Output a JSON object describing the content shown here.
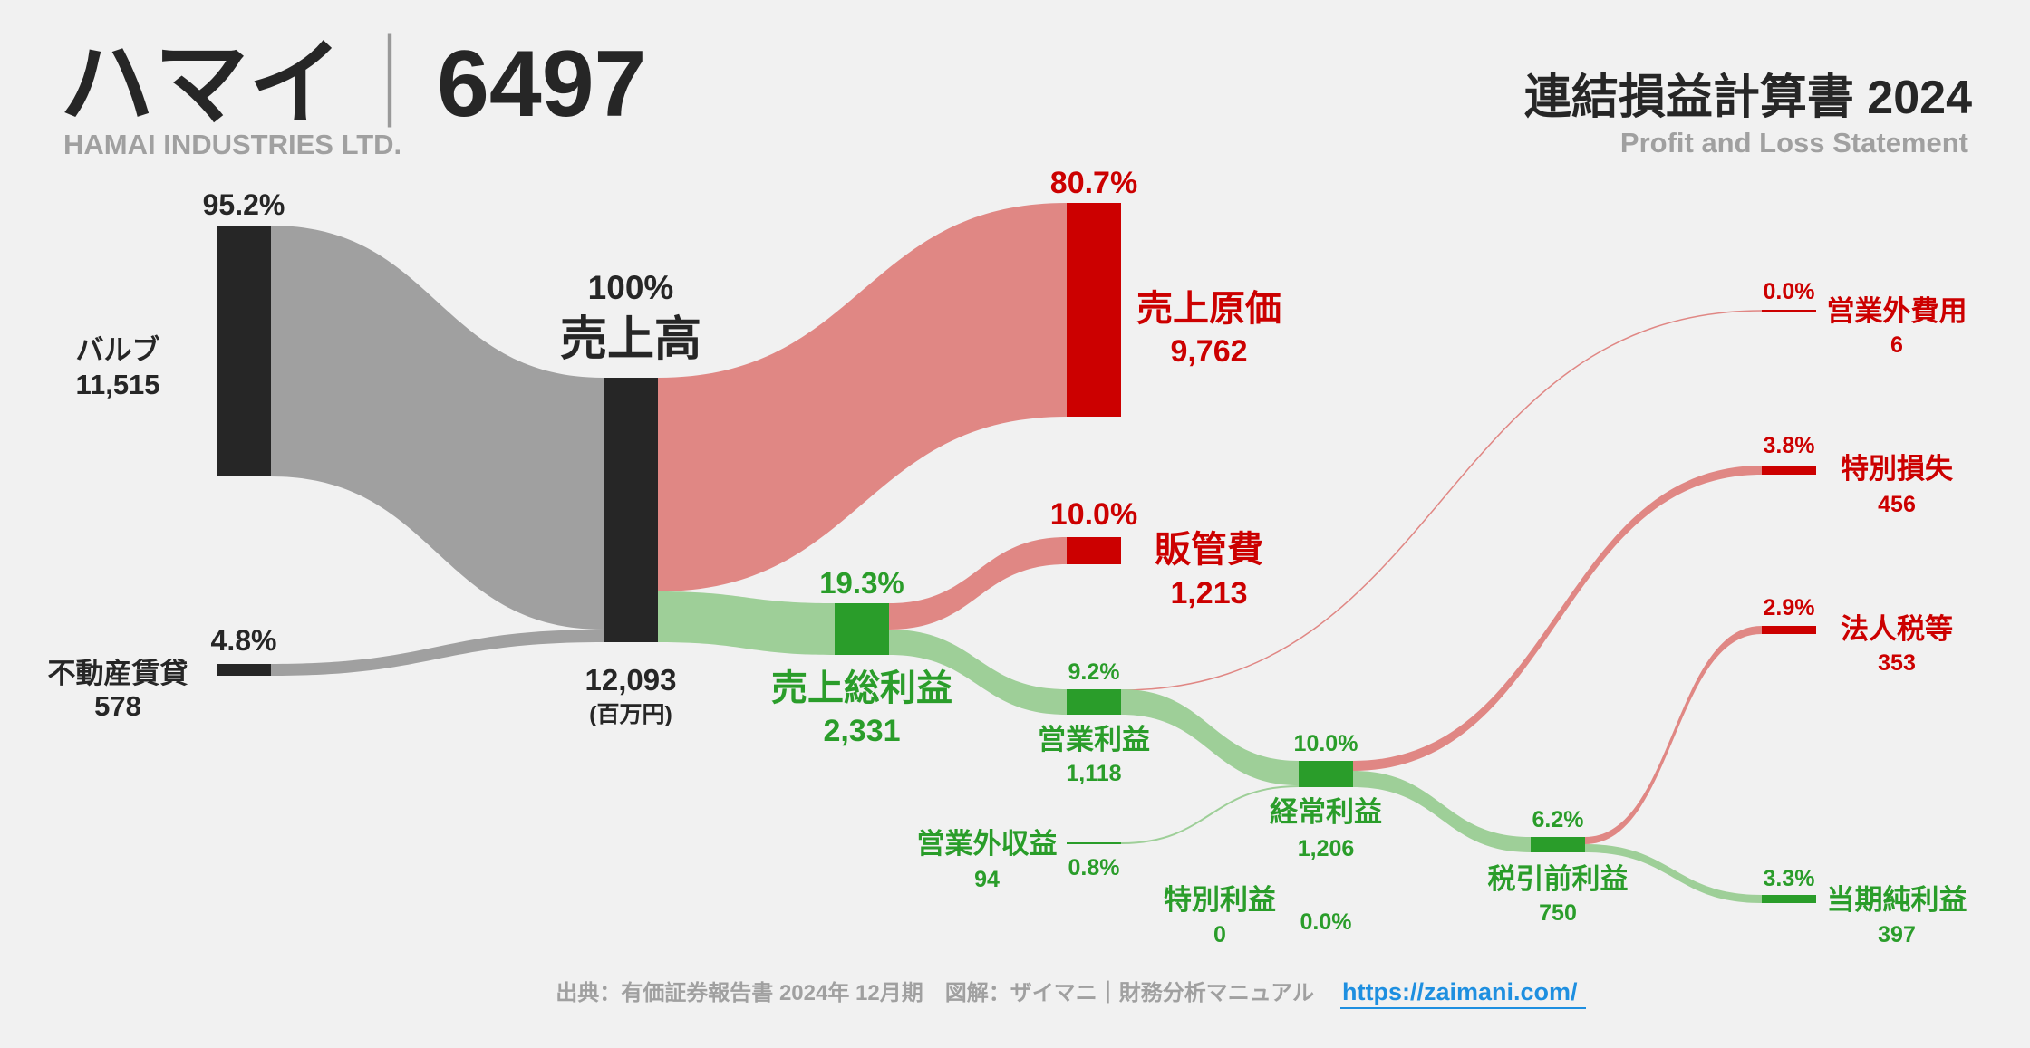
{
  "header": {
    "company": "ハマイ",
    "separator": "｜",
    "code": "6497",
    "company_en": "HAMAI INDUSTRIES LTD.",
    "statement_title": "連結損益計算書 2024",
    "statement_en": "Profit and Loss Statement"
  },
  "colors": {
    "dark": "#262626",
    "revenue_flow": "#a0a0a0",
    "cost": "#cc0000",
    "cost_flow": "#e08784",
    "profit": "#2a9d2a",
    "profit_flow": "#9ecf98"
  },
  "nodes": {
    "valve": {
      "pct": "95.2%",
      "label": "バルブ",
      "value": "11,515"
    },
    "rent": {
      "pct": "4.8%",
      "label": "不動産賃貸",
      "value": "578"
    },
    "sales": {
      "pct": "100%",
      "label": "売上高",
      "value": "12,093",
      "unit": "(百万円)"
    },
    "cogs": {
      "pct": "80.7%",
      "label": "売上原価",
      "value": "9,762"
    },
    "sga": {
      "pct": "10.0%",
      "label": "販管費",
      "value": "1,213"
    },
    "gross": {
      "pct": "19.3%",
      "label": "売上総利益",
      "value": "2,331"
    },
    "operating": {
      "pct": "9.2%",
      "label": "営業利益",
      "value": "1,118"
    },
    "nonop_exp": {
      "pct": "0.0%",
      "label": "営業外費用",
      "value": "6"
    },
    "nonop_inc": {
      "pct": "0.8%",
      "label": "営業外収益",
      "value": "94"
    },
    "ordinary": {
      "pct": "10.0%",
      "label": "経常利益",
      "value": "1,206"
    },
    "extra_gain": {
      "pct": "0.0%",
      "label": "特別利益",
      "value": "0"
    },
    "extra_loss": {
      "pct": "3.8%",
      "label": "特別損失",
      "value": "456"
    },
    "pretax": {
      "pct": "6.2%",
      "label": "税引前利益",
      "value": "750"
    },
    "tax": {
      "pct": "2.9%",
      "label": "法人税等",
      "value": "353"
    },
    "net": {
      "pct": "3.3%",
      "label": "当期純利益",
      "value": "397"
    }
  },
  "footer": {
    "source": "出典：有価証券報告書 2024年 12月期　図解：ザイマニ｜財務分析マニュアル",
    "url": "https://zaimani.com/"
  }
}
